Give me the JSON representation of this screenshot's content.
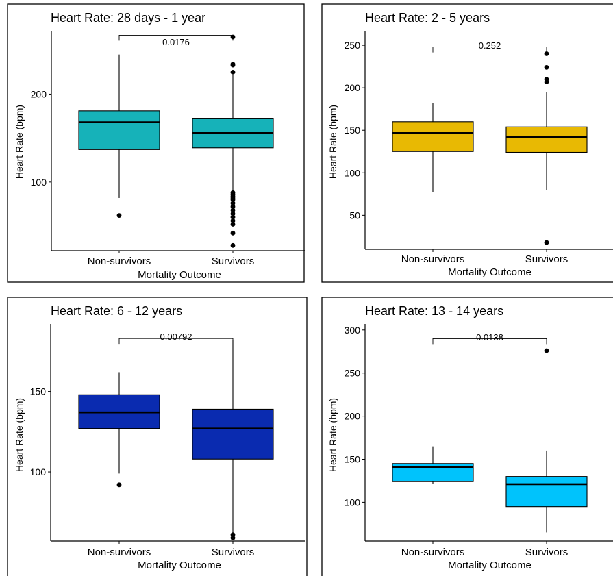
{
  "chart_data": [
    {
      "type": "box",
      "title": "Heart Rate: 28 days - 1 year",
      "xlabel": "Mortality Outcome",
      "ylabel": "Heart Rate (bpm)",
      "categories": [
        "Non-survivors",
        "Survivors"
      ],
      "yticks": [
        100,
        200
      ],
      "ylim": [
        22,
        272
      ],
      "fill": "#16b2b9",
      "groups": [
        {
          "q1": 137,
          "median": 168,
          "q3": 181,
          "whisker_low": 82,
          "whisker_high": 245,
          "outliers": [
            62
          ]
        },
        {
          "q1": 139,
          "median": 156,
          "q3": 172,
          "whisker_low": 91,
          "whisker_high": 222,
          "outliers": [
            225,
            233,
            234,
            265,
            88,
            86,
            84,
            82,
            80,
            76,
            72,
            68,
            64,
            60,
            56,
            52,
            42,
            28
          ]
        }
      ],
      "comparison": {
        "label": "0.0176",
        "y": 267
      }
    },
    {
      "type": "box",
      "title": "Heart Rate: 2 - 5 years",
      "xlabel": "Mortality Outcome",
      "ylabel": "Heart Rate (bpm)",
      "categories": [
        "Non-survivors",
        "Survivors"
      ],
      "yticks": [
        50,
        100,
        150,
        200,
        250
      ],
      "ylim": [
        10,
        267
      ],
      "fill": "#e8b903",
      "groups": [
        {
          "q1": 125,
          "median": 147,
          "q3": 160,
          "whisker_low": 77,
          "whisker_high": 182,
          "outliers": []
        },
        {
          "q1": 124,
          "median": 142,
          "q3": 154,
          "whisker_low": 80,
          "whisker_high": 195,
          "outliers": [
            207,
            210,
            224,
            240,
            18
          ]
        }
      ],
      "comparison": {
        "label": "0.252",
        "y": 248
      }
    },
    {
      "type": "box",
      "title": "Heart Rate: 6 - 12 years",
      "xlabel": "Mortality Outcome",
      "ylabel": "Heart Rate (bpm)",
      "categories": [
        "Non-survivors",
        "Survivors"
      ],
      "yticks": [
        100,
        150
      ],
      "ylim": [
        57,
        192
      ],
      "fill": "#0a2bb0",
      "groups": [
        {
          "q1": 127,
          "median": 137,
          "q3": 148,
          "whisker_low": 99,
          "whisker_high": 162,
          "outliers": [
            92
          ]
        },
        {
          "q1": 108,
          "median": 127,
          "q3": 139,
          "whisker_low": 62,
          "whisker_high": 182,
          "outliers": [
            59,
            61
          ]
        }
      ],
      "comparison": {
        "label": "0.00792",
        "y": 183
      }
    },
    {
      "type": "box",
      "title": "Heart Rate: 13 - 14 years",
      "xlabel": "Mortality Outcome",
      "ylabel": "Heart Rate (bpm)",
      "categories": [
        "Non-survivors",
        "Survivors"
      ],
      "yticks": [
        100,
        150,
        200,
        250,
        300
      ],
      "ylim": [
        55,
        307
      ],
      "fill": "#00c3fc",
      "groups": [
        {
          "q1": 124,
          "median": 141,
          "q3": 145,
          "whisker_low": 121,
          "whisker_high": 165,
          "outliers": []
        },
        {
          "q1": 95,
          "median": 121,
          "q3": 130,
          "whisker_low": 65,
          "whisker_high": 160,
          "outliers": [
            276
          ]
        }
      ],
      "comparison": {
        "label": "0.0138",
        "y": 290
      }
    }
  ]
}
